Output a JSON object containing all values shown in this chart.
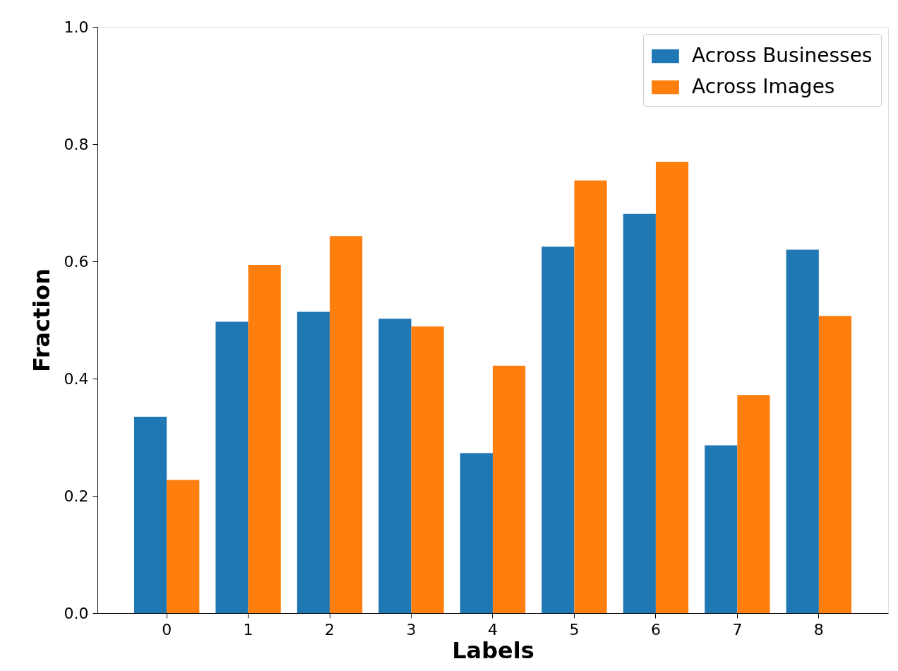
{
  "chart_data": {
    "type": "bar",
    "xlabel": "Labels",
    "ylabel": "Fraction",
    "categories": [
      "0",
      "1",
      "2",
      "3",
      "4",
      "5",
      "6",
      "7",
      "8"
    ],
    "series": [
      {
        "name": "Across Businesses",
        "color": "#1f77b4",
        "values": [
          0.335,
          0.497,
          0.514,
          0.502,
          0.273,
          0.625,
          0.681,
          0.286,
          0.62
        ]
      },
      {
        "name": "Across Images",
        "color": "#ff7f0e",
        "values": [
          0.227,
          0.594,
          0.643,
          0.489,
          0.422,
          0.738,
          0.77,
          0.372,
          0.507
        ]
      }
    ],
    "ylim": [
      0,
      1
    ],
    "yticks": [
      {
        "value": 0,
        "label": "0.0"
      },
      0.2,
      0.4,
      0.6,
      0.8,
      {
        "value": 1,
        "label": "1.0"
      }
    ],
    "grid": false,
    "legend": "top right"
  }
}
